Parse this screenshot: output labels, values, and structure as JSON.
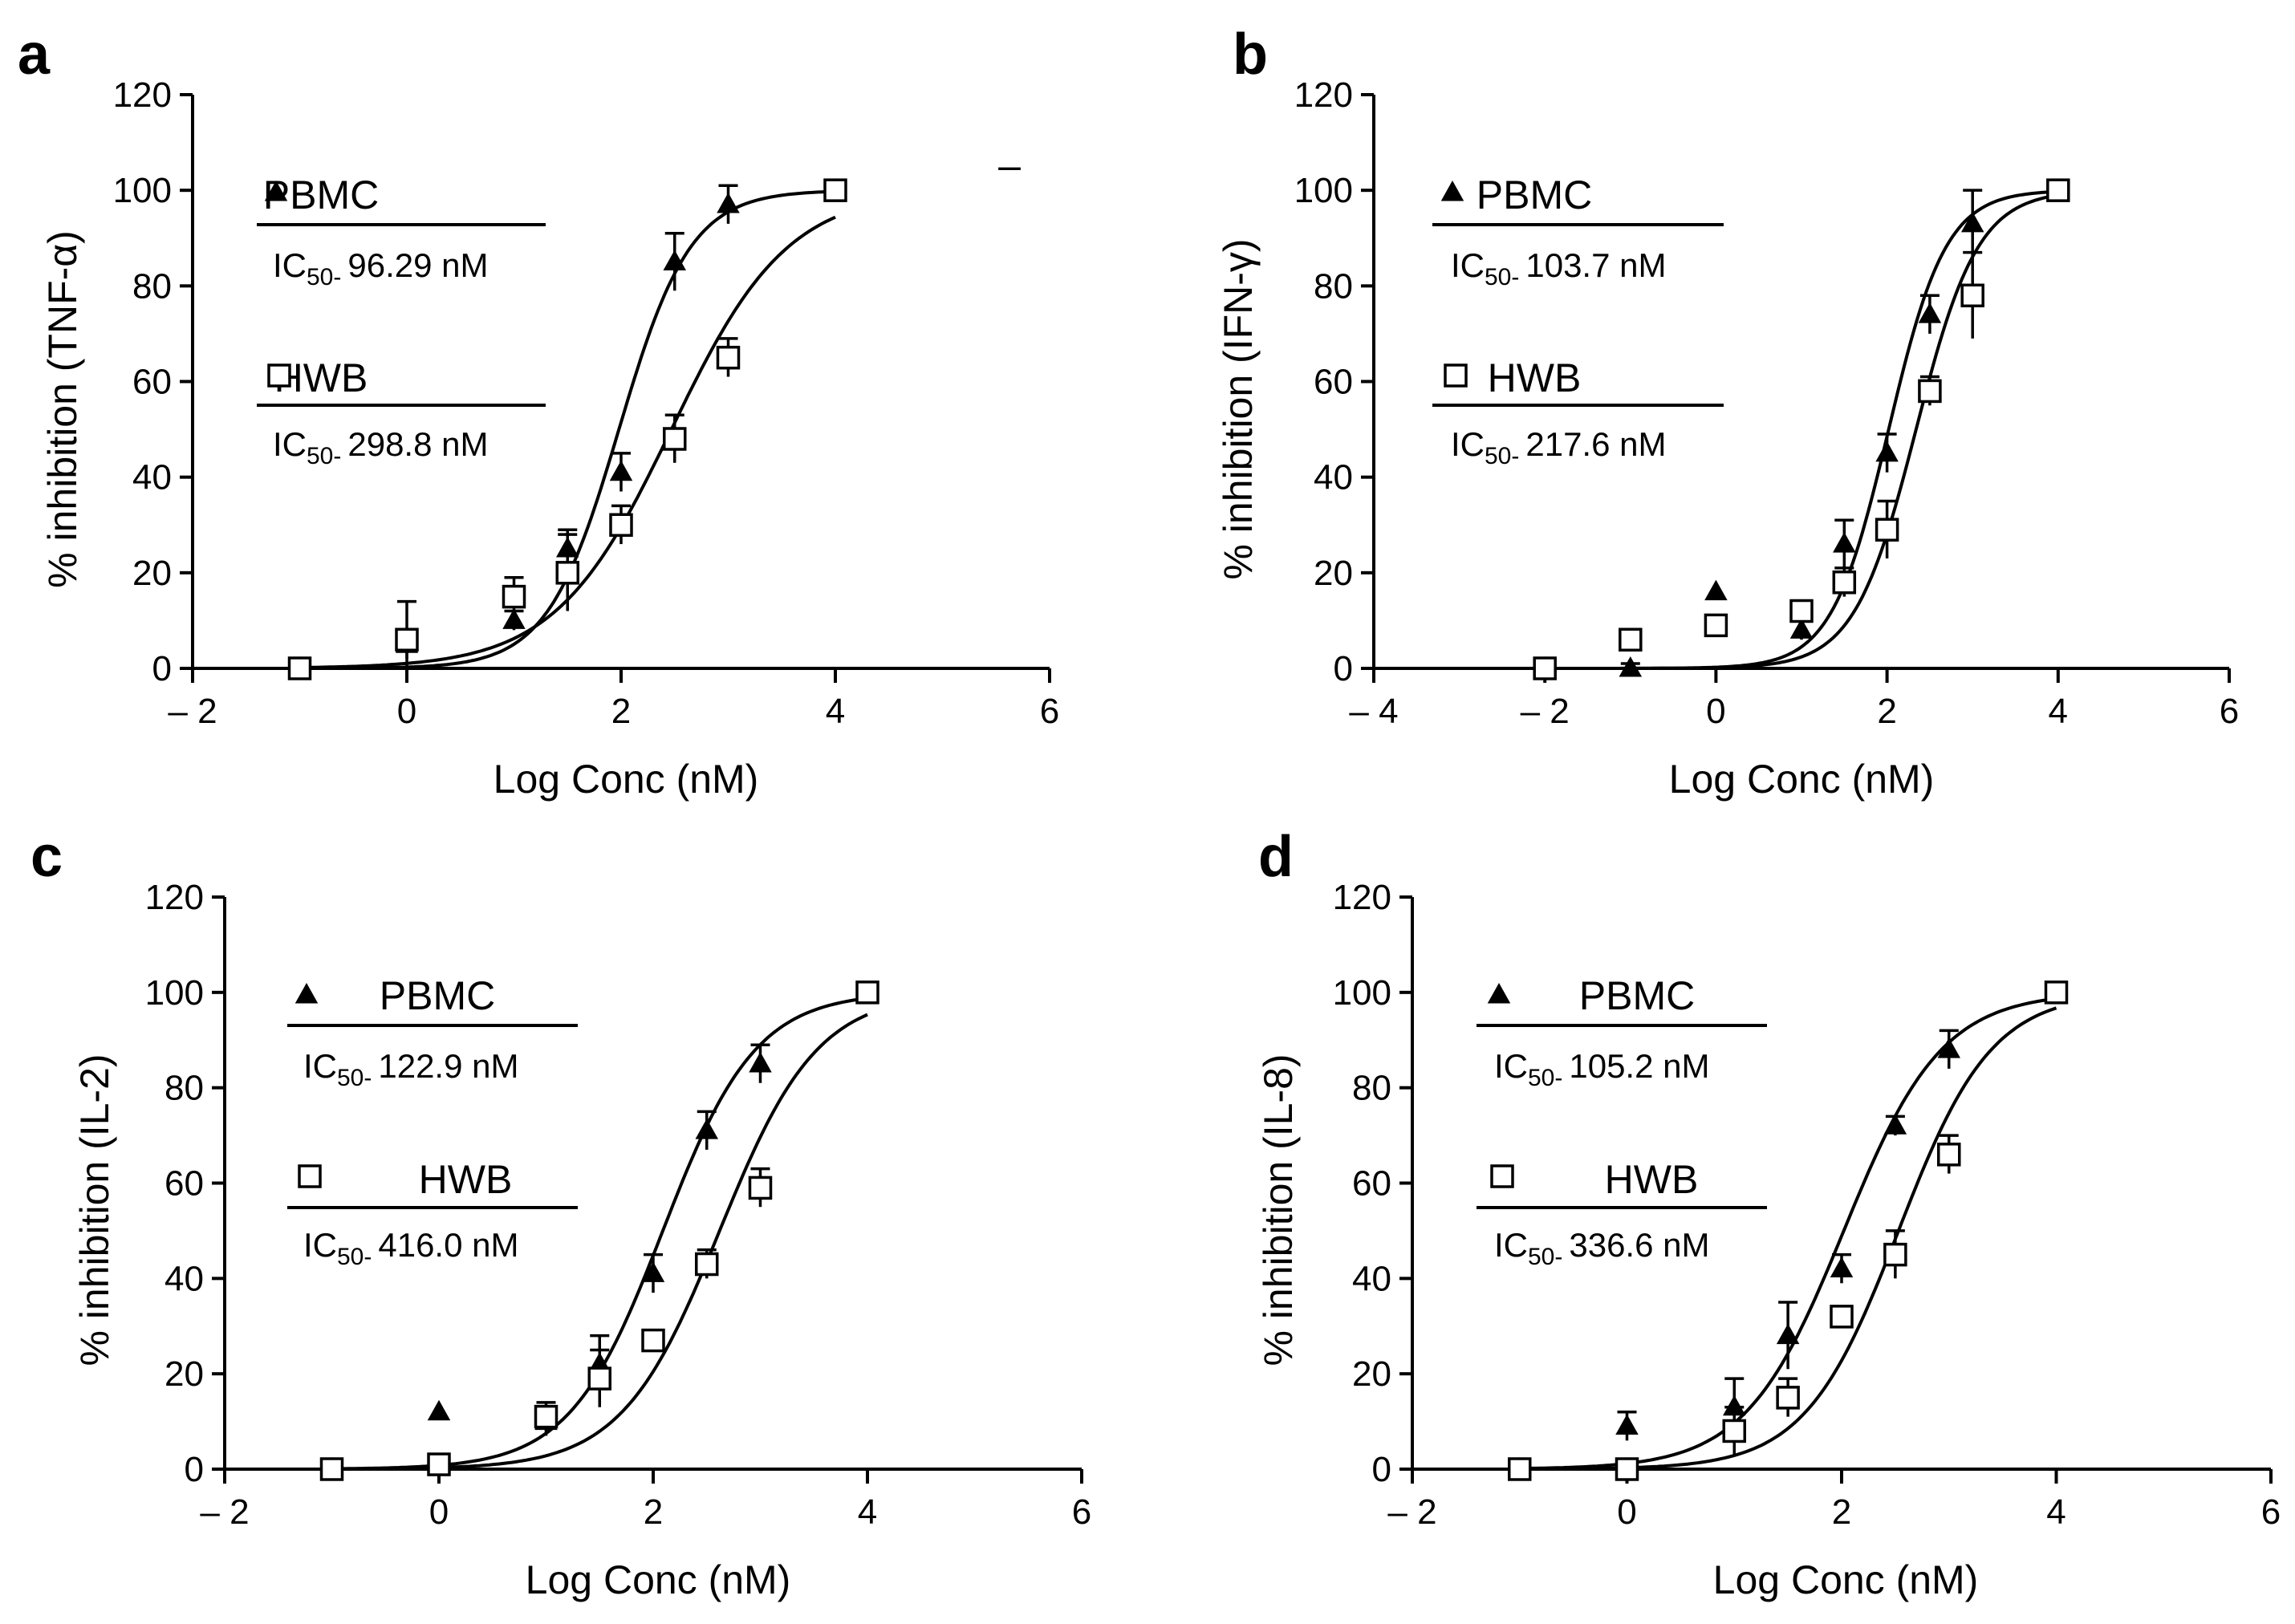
{
  "chart_data": [
    {
      "type": "scatter",
      "panel": "a",
      "xlabel": "Log Conc (nM)",
      "ylabel": "% inhibition (TNF-α)",
      "xlim": [
        -2,
        6
      ],
      "ylim": [
        0,
        120
      ],
      "xticks": [
        -2,
        0,
        2,
        4,
        6
      ],
      "xtick_labels": [
        "– 2",
        "0",
        "2",
        "4",
        "6"
      ],
      "yticks": [
        0,
        20,
        40,
        60,
        80,
        100,
        120
      ],
      "ytick_labels": [
        "0",
        "20",
        "40",
        "60",
        "80",
        "100",
        "120"
      ],
      "grid": false,
      "legend_position": "top-left",
      "stray_mark": "–",
      "series": [
        {
          "name": "PBMC",
          "marker": "filled-triangle",
          "ic50_label": "96.29 nM",
          "curve_logic50": 1.98,
          "curve_hill": 1.3,
          "x": [
            -1,
            0,
            1,
            1.5,
            2,
            2.5,
            3,
            4
          ],
          "y": [
            0,
            5,
            10,
            25,
            41,
            85,
            97,
            100
          ],
          "err": [
            1,
            3,
            2,
            4,
            4,
            6,
            4,
            0
          ]
        },
        {
          "name": "HWB",
          "marker": "open-square",
          "ic50_label": "298.8 nM",
          "curve_logic50": 2.47,
          "curve_hill": 0.8,
          "x": [
            -1,
            0,
            1,
            1.5,
            2,
            2.5,
            3,
            4
          ],
          "y": [
            0,
            6,
            15,
            20,
            30,
            48,
            65,
            100
          ],
          "err": [
            1,
            8,
            4,
            8,
            4,
            5,
            4,
            0
          ]
        }
      ]
    },
    {
      "type": "scatter",
      "panel": "b",
      "xlabel": "Log Conc (nM)",
      "ylabel": "% inhibition (IFN-γ)",
      "xlim": [
        -4,
        6
      ],
      "ylim": [
        0,
        120
      ],
      "xticks": [
        -4,
        -2,
        0,
        2,
        4,
        6
      ],
      "xtick_labels": [
        "– 4",
        "– 2",
        "0",
        "2",
        "4",
        "6"
      ],
      "yticks": [
        0,
        20,
        40,
        60,
        80,
        100,
        120
      ],
      "ytick_labels": [
        "0",
        "20",
        "40",
        "60",
        "80",
        "100",
        "120"
      ],
      "grid": false,
      "legend_position": "top-left",
      "series": [
        {
          "name": "PBMC",
          "marker": "filled-triangle",
          "ic50_label": "103.7 nM",
          "curve_logic50": 2.02,
          "curve_hill": 1.3,
          "x": [
            -2,
            -1,
            0,
            1,
            1.5,
            2,
            2.5,
            3,
            4
          ],
          "y": [
            0,
            0,
            16,
            8,
            26,
            45,
            74,
            93,
            100
          ],
          "err": [
            1,
            1,
            0,
            2,
            5,
            4,
            4,
            7,
            0
          ]
        },
        {
          "name": "HWB",
          "marker": "open-square",
          "ic50_label": "217.6 nM",
          "curve_logic50": 2.34,
          "curve_hill": 1.2,
          "x": [
            -2,
            -1,
            0,
            1,
            1.5,
            2,
            2.5,
            3,
            4
          ],
          "y": [
            0,
            6,
            9,
            12,
            18,
            29,
            58,
            78,
            100
          ],
          "err": [
            1,
            0,
            0,
            2,
            3,
            6,
            3,
            9,
            0
          ]
        }
      ]
    },
    {
      "type": "scatter",
      "panel": "c",
      "xlabel": "Log Conc (nM)",
      "ylabel": "% inhibition (IL-2)",
      "xlim": [
        -2,
        6
      ],
      "ylim": [
        0,
        120
      ],
      "xticks": [
        -2,
        0,
        2,
        4,
        6
      ],
      "xtick_labels": [
        "– 2",
        "0",
        "2",
        "4",
        "6"
      ],
      "yticks": [
        0,
        20,
        40,
        60,
        80,
        100,
        120
      ],
      "ytick_labels": [
        "0",
        "20",
        "40",
        "60",
        "80",
        "100",
        "120"
      ],
      "grid": false,
      "legend_position": "top-left",
      "series": [
        {
          "name": "PBMC",
          "marker": "filled-triangle",
          "ic50_label": "122.9 nM",
          "curve_logic50": 2.09,
          "curve_hill": 1.0,
          "x": [
            -1,
            0,
            1,
            1.5,
            2,
            2.5,
            3,
            4
          ],
          "y": [
            0,
            12,
            10,
            22,
            41,
            71,
            85,
            100
          ],
          "err": [
            1,
            0,
            3,
            6,
            4,
            4,
            4,
            0
          ]
        },
        {
          "name": "HWB",
          "marker": "open-square",
          "ic50_label": "416.0 nM",
          "curve_logic50": 2.62,
          "curve_hill": 0.95,
          "x": [
            -1,
            0,
            1,
            1.5,
            2,
            2.5,
            3,
            4
          ],
          "y": [
            0,
            1,
            11,
            19,
            27,
            43,
            59,
            100
          ],
          "err": [
            1,
            1,
            3,
            6,
            2,
            3,
            4,
            0
          ]
        }
      ]
    },
    {
      "type": "scatter",
      "panel": "d",
      "xlabel": "Log Conc (nM)",
      "ylabel": "% inhibition (IL-8)",
      "xlim": [
        -2,
        6
      ],
      "ylim": [
        0,
        120
      ],
      "xticks": [
        -2,
        0,
        2,
        4,
        6
      ],
      "xtick_labels": [
        "– 2",
        "0",
        "2",
        "4",
        "6"
      ],
      "yticks": [
        0,
        20,
        40,
        60,
        80,
        100,
        120
      ],
      "ytick_labels": [
        "0",
        "20",
        "40",
        "60",
        "80",
        "100",
        "120"
      ],
      "grid": false,
      "legend_position": "top-left",
      "series": [
        {
          "name": "PBMC",
          "marker": "filled-triangle",
          "ic50_label": "105.2 nM",
          "curve_logic50": 2.02,
          "curve_hill": 0.95,
          "x": [
            -1,
            0,
            1,
            1.5,
            2,
            2.5,
            3,
            4
          ],
          "y": [
            0,
            9,
            13,
            28,
            42,
            72,
            88,
            100
          ],
          "err": [
            1,
            3,
            6,
            7,
            3,
            2,
            4,
            0
          ]
        },
        {
          "name": "HWB",
          "marker": "open-square",
          "ic50_label": "336.6 nM",
          "curve_logic50": 2.53,
          "curve_hill": 1.0,
          "x": [
            -1,
            0,
            1,
            1.5,
            2,
            2.5,
            3,
            4
          ],
          "y": [
            0,
            0,
            8,
            15,
            32,
            45,
            66,
            100
          ],
          "err": [
            1,
            1,
            5,
            4,
            2,
            5,
            4,
            0
          ]
        }
      ]
    }
  ]
}
